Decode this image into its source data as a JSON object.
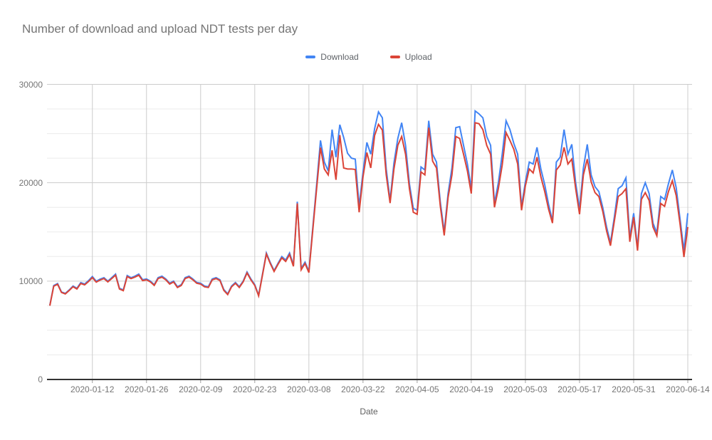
{
  "title": "Number of download and upload NDT tests per day",
  "legend": {
    "items": [
      {
        "label": "Download",
        "color": "#4285F4"
      },
      {
        "label": "Upload",
        "color": "#DB4437"
      }
    ]
  },
  "x_axis": {
    "title": "Date",
    "tick_labels": [
      "2020-01-12",
      "2020-01-26",
      "2020-02-09",
      "2020-02-23",
      "2020-03-08",
      "2020-03-22",
      "2020-04-05",
      "2020-04-19",
      "2020-05-03",
      "2020-05-17",
      "2020-05-31",
      "2020-06-14"
    ]
  },
  "y_axis": {
    "tick_labels": [
      "0",
      "10000",
      "20000",
      "30000"
    ],
    "tick_values": [
      0,
      10000,
      20000,
      30000
    ]
  },
  "colors": {
    "grid_major": "#cccccc",
    "grid_minor": "#ebebeb",
    "axis_line": "#333333",
    "tick_mark": "#9e9e9e"
  },
  "chart_data": {
    "type": "line",
    "title": "Number of download and upload NDT tests per day",
    "xlabel": "Date",
    "ylabel": "",
    "ylim": [
      0,
      30000
    ],
    "y_major_step": 10000,
    "y_minor_step": 2500,
    "grid": true,
    "legend_position": "top",
    "x_start_date": "2020-01-01",
    "x_end_date": "2020-06-14",
    "x_tick_dates": [
      "2020-01-12",
      "2020-01-26",
      "2020-02-09",
      "2020-02-23",
      "2020-03-08",
      "2020-03-22",
      "2020-04-05",
      "2020-04-19",
      "2020-05-03",
      "2020-05-17",
      "2020-05-31",
      "2020-06-14"
    ],
    "series": [
      {
        "name": "Download",
        "color": "#4285F4",
        "values": [
          7550,
          9550,
          9750,
          8900,
          8750,
          9100,
          9500,
          9270,
          9850,
          9700,
          10050,
          10470,
          9990,
          10200,
          10350,
          10000,
          10350,
          10715,
          9280,
          9100,
          10570,
          10350,
          10500,
          10715,
          10140,
          10215,
          10000,
          9640,
          10355,
          10500,
          10215,
          9785,
          10000,
          9430,
          9640,
          10355,
          10500,
          10215,
          9860,
          9785,
          9500,
          9430,
          10215,
          10355,
          10140,
          9140,
          8710,
          9500,
          9860,
          9430,
          10000,
          10930,
          10215,
          9640,
          8570,
          10715,
          12860,
          11900,
          11070,
          11800,
          12500,
          12140,
          12860,
          11640,
          18070,
          11290,
          11930,
          11000,
          15400,
          19800,
          24300,
          22100,
          21200,
          25400,
          22600,
          25900,
          24600,
          23000,
          22500,
          22400,
          17600,
          21100,
          24100,
          22900,
          25500,
          27200,
          26600,
          21400,
          18200,
          22000,
          24500,
          26100,
          23800,
          19900,
          17400,
          17200,
          21600,
          21300,
          26300,
          22900,
          22100,
          18000,
          15000,
          18900,
          21500,
          25600,
          25700,
          23800,
          21900,
          19400,
          27300,
          27000,
          26600,
          24700,
          23800,
          17900,
          20000,
          22900,
          26300,
          25400,
          24000,
          22900,
          17600,
          20100,
          22100,
          21900,
          23600,
          21400,
          19800,
          17800,
          16100,
          22100,
          22600,
          25400,
          22900,
          23900,
          20000,
          17300,
          21500,
          23900,
          20800,
          19600,
          19100,
          17500,
          15500,
          13900,
          16500,
          19400,
          19700,
          20500,
          14400,
          16900,
          13400,
          18900,
          20000,
          18900,
          15900,
          14900,
          18600,
          18300,
          19900,
          21300,
          19500,
          16300,
          13100,
          16900
        ]
      },
      {
        "name": "Upload",
        "color": "#DB4437",
        "values": [
          7500,
          9480,
          9680,
          8850,
          8700,
          9050,
          9430,
          9200,
          9760,
          9620,
          9960,
          10360,
          9900,
          10110,
          10260,
          9920,
          10260,
          10600,
          9200,
          9030,
          10460,
          10260,
          10410,
          10600,
          10050,
          10130,
          9920,
          9560,
          10260,
          10400,
          10130,
          9700,
          9920,
          9350,
          9560,
          10260,
          10410,
          10130,
          9780,
          9700,
          9420,
          9350,
          10130,
          10260,
          10060,
          9060,
          8630,
          9420,
          9780,
          9350,
          9920,
          10830,
          10130,
          9560,
          8500,
          10620,
          12750,
          11800,
          10980,
          11700,
          12360,
          12000,
          12700,
          11500,
          17900,
          11150,
          11790,
          10870,
          15150,
          19400,
          23570,
          21400,
          20800,
          23300,
          20300,
          24850,
          21500,
          21400,
          21400,
          21350,
          17000,
          20600,
          23070,
          21500,
          24800,
          25930,
          25350,
          20800,
          17930,
          21400,
          23800,
          24700,
          22900,
          19400,
          17000,
          16800,
          21100,
          20800,
          25600,
          22200,
          21500,
          17600,
          14650,
          18500,
          20800,
          24700,
          24500,
          22900,
          21200,
          18900,
          26100,
          26000,
          25400,
          23800,
          22900,
          17500,
          19400,
          21800,
          25100,
          24300,
          23400,
          21900,
          17200,
          19700,
          21400,
          21000,
          22600,
          20600,
          19100,
          17300,
          15900,
          21300,
          21800,
          23600,
          21900,
          22400,
          19400,
          16800,
          20800,
          22400,
          20100,
          19000,
          18600,
          17100,
          15100,
          13600,
          16100,
          18600,
          18900,
          19400,
          14000,
          16500,
          13100,
          18300,
          19000,
          18200,
          15500,
          14600,
          17900,
          17600,
          19100,
          20200,
          18700,
          15800,
          12450,
          15500
        ]
      }
    ]
  }
}
